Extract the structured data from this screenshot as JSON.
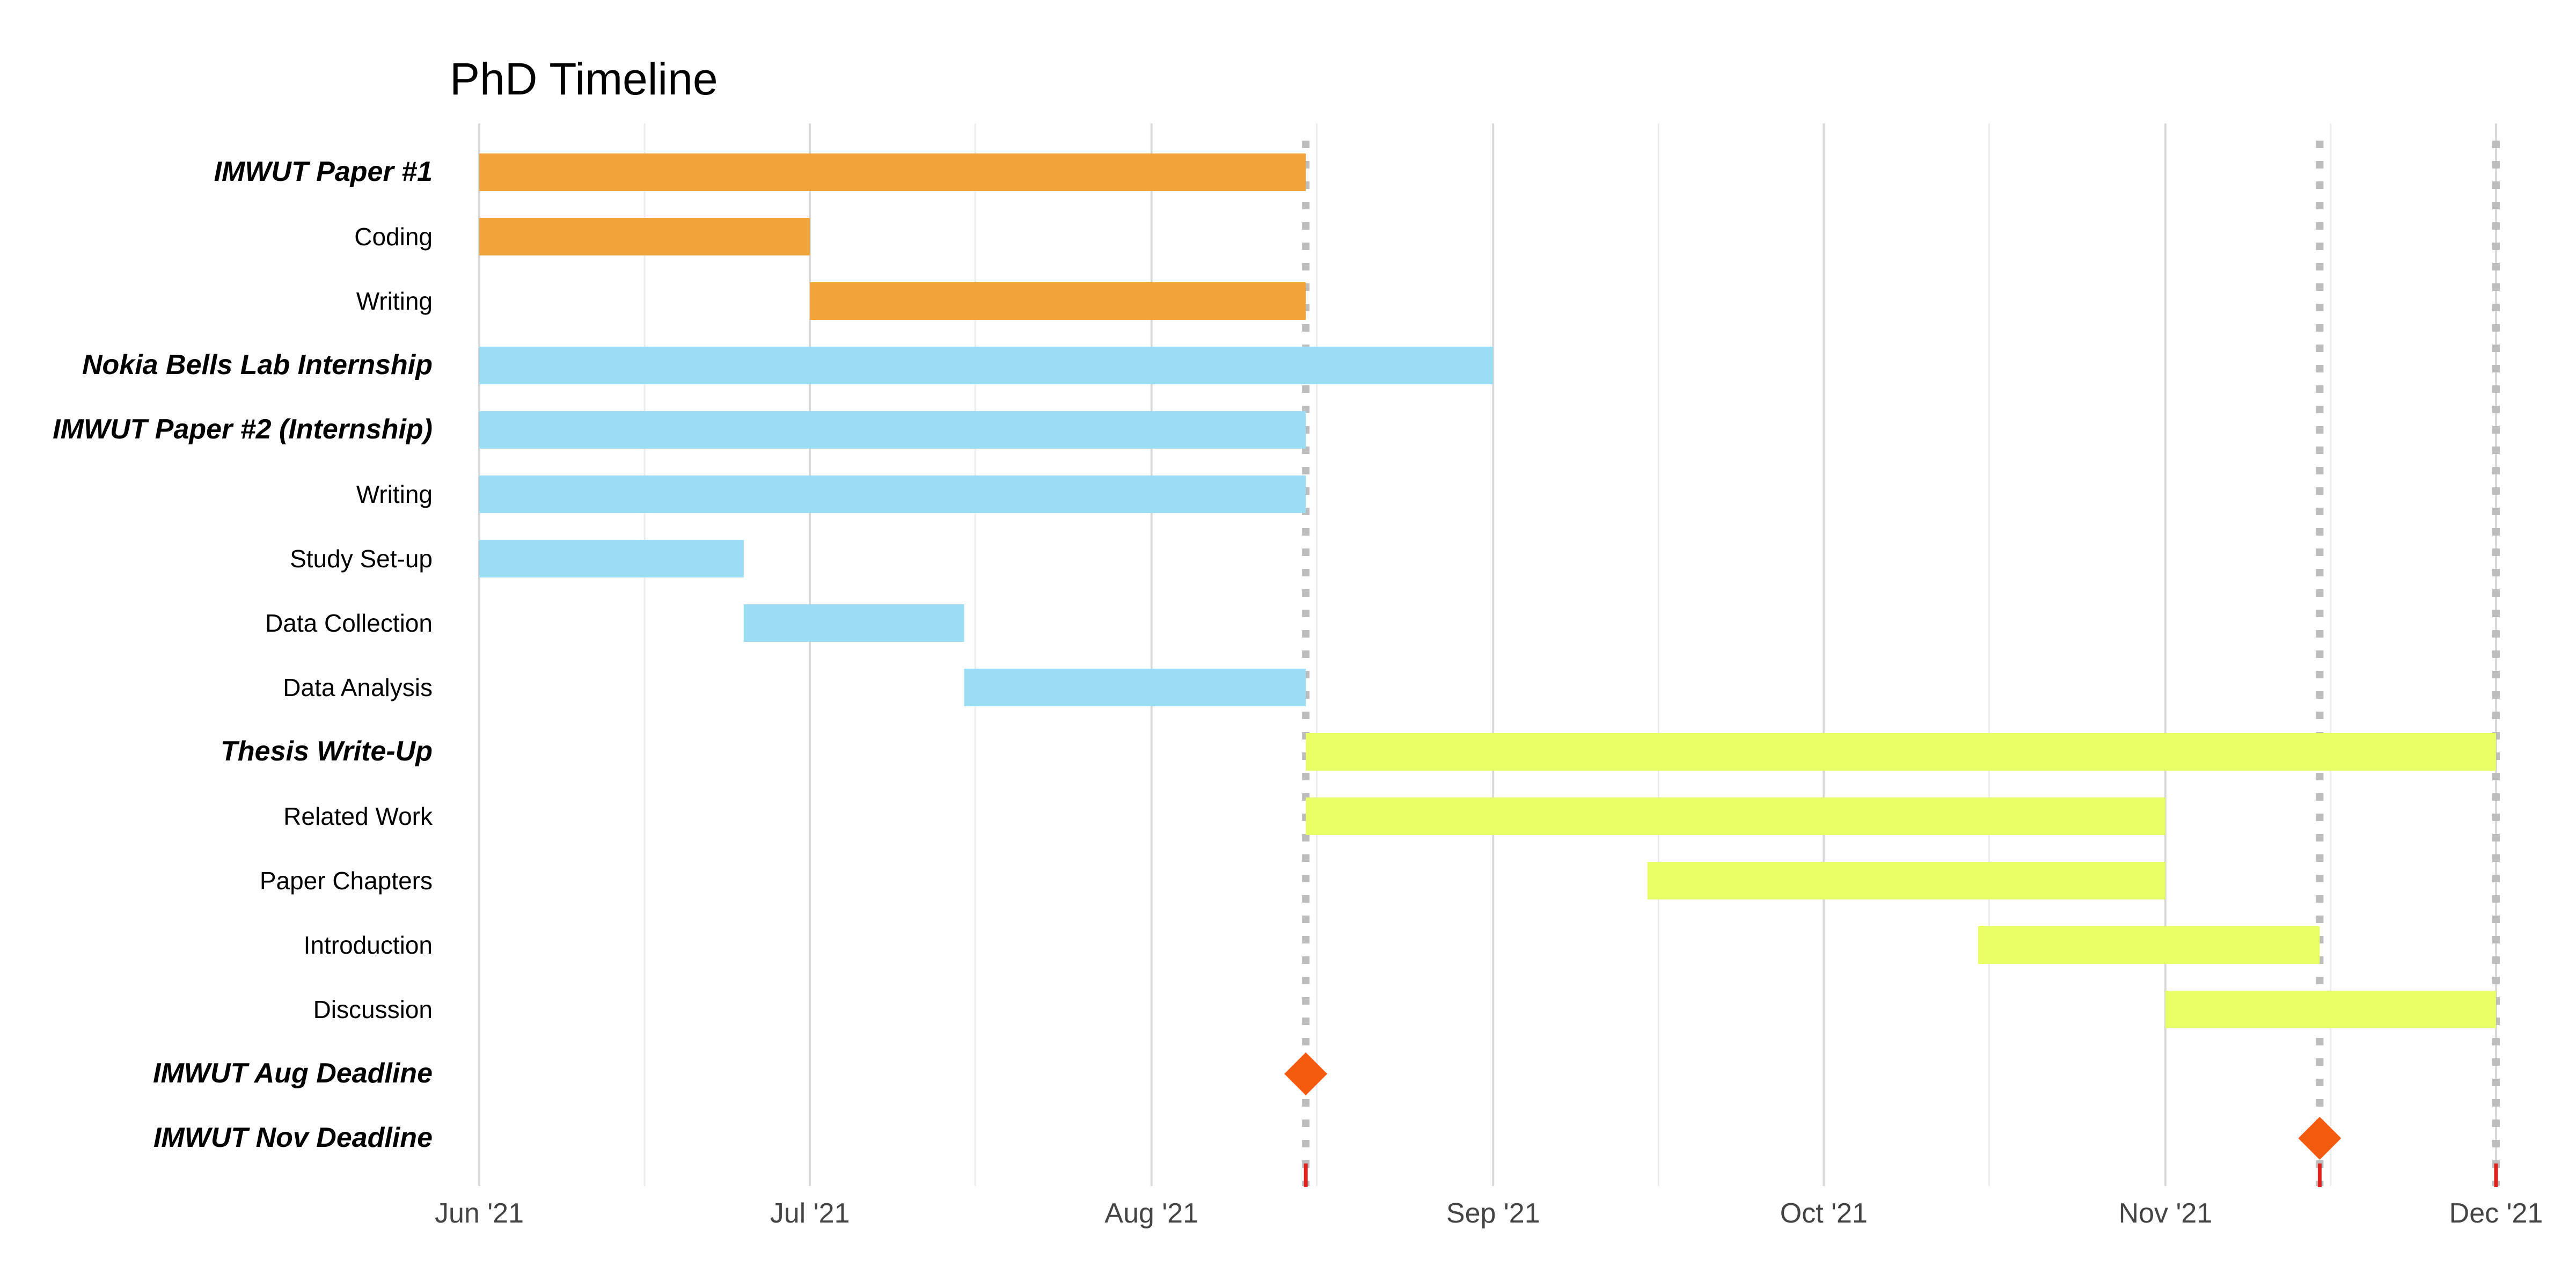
{
  "chart_data": {
    "type": "gantt",
    "title": "PhD Timeline",
    "xlabel": "",
    "ylabel": "",
    "x_axis": {
      "type": "date",
      "range": [
        "2021-06-01",
        "2021-12-01"
      ],
      "ticks": [
        {
          "date": "2021-06-01",
          "label": "Jun '21"
        },
        {
          "date": "2021-07-01",
          "label": "Jul '21"
        },
        {
          "date": "2021-08-01",
          "label": "Aug '21"
        },
        {
          "date": "2021-09-01",
          "label": "Sep '21"
        },
        {
          "date": "2021-10-01",
          "label": "Oct '21"
        },
        {
          "date": "2021-11-01",
          "label": "Nov '21"
        },
        {
          "date": "2021-12-01",
          "label": "Dec '21"
        }
      ],
      "minor_ticks": [
        "2021-06-16",
        "2021-07-16",
        "2021-08-16",
        "2021-09-16",
        "2021-10-16",
        "2021-11-16"
      ]
    },
    "grid": true,
    "legend": "none",
    "colors": {
      "IMWUT Paper #1": "#F2A33A",
      "Nokia Bells Lab Internship": "#9BDDF2",
      "Thesis Write-Up": "#E8FF66",
      "milestone": "#F45B0F",
      "deadline_marker": "#E0201B",
      "deadline_line": "#BDBDBD"
    },
    "tasks": [
      {
        "label": "IMWUT Paper #1",
        "group": "IMWUT Paper #1",
        "heading": true,
        "start": "2021-06-01",
        "end": "2021-08-15"
      },
      {
        "label": "Coding",
        "group": "IMWUT Paper #1",
        "heading": false,
        "start": "2021-06-01",
        "end": "2021-07-01"
      },
      {
        "label": "Writing",
        "group": "IMWUT Paper #1",
        "heading": false,
        "start": "2021-07-01",
        "end": "2021-08-15"
      },
      {
        "label": "Nokia Bells Lab Internship",
        "group": "Nokia Bells Lab Internship",
        "heading": true,
        "start": "2021-06-01",
        "end": "2021-09-01"
      },
      {
        "label": "IMWUT Paper #2 (Internship)",
        "group": "Nokia Bells Lab Internship",
        "heading": true,
        "start": "2021-06-01",
        "end": "2021-08-15"
      },
      {
        "label": "Writing",
        "group": "Nokia Bells Lab Internship",
        "heading": false,
        "start": "2021-06-01",
        "end": "2021-08-15"
      },
      {
        "label": "Study Set-up",
        "group": "Nokia Bells Lab Internship",
        "heading": false,
        "start": "2021-06-01",
        "end": "2021-06-25"
      },
      {
        "label": "Data Collection",
        "group": "Nokia Bells Lab Internship",
        "heading": false,
        "start": "2021-06-25",
        "end": "2021-07-15"
      },
      {
        "label": "Data Analysis",
        "group": "Nokia Bells Lab Internship",
        "heading": false,
        "start": "2021-07-15",
        "end": "2021-08-15"
      },
      {
        "label": "Thesis Write-Up",
        "group": "Thesis Write-Up",
        "heading": true,
        "start": "2021-08-15",
        "end": "2021-12-01"
      },
      {
        "label": "Related Work",
        "group": "Thesis Write-Up",
        "heading": false,
        "start": "2021-08-15",
        "end": "2021-11-01"
      },
      {
        "label": "Paper Chapters",
        "group": "Thesis Write-Up",
        "heading": false,
        "start": "2021-09-15",
        "end": "2021-11-01"
      },
      {
        "label": "Introduction",
        "group": "Thesis Write-Up",
        "heading": false,
        "start": "2021-10-15",
        "end": "2021-11-15"
      },
      {
        "label": "Discussion",
        "group": "Thesis Write-Up",
        "heading": false,
        "start": "2021-11-01",
        "end": "2021-12-01"
      }
    ],
    "milestones": [
      {
        "label": "IMWUT Aug Deadline",
        "heading": true,
        "date": "2021-08-15"
      },
      {
        "label": "IMWUT Nov Deadline",
        "heading": true,
        "date": "2021-11-15"
      }
    ],
    "deadline_lines": [
      "2021-08-15",
      "2021-11-15",
      "2021-12-01"
    ]
  }
}
